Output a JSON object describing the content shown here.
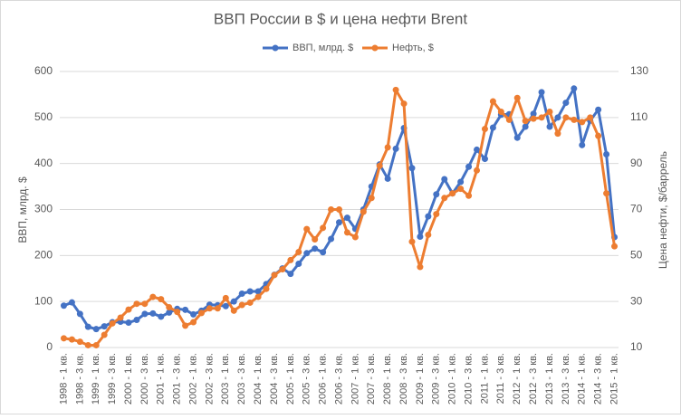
{
  "chart_data": {
    "type": "line",
    "title": "ВВП России в $ и цена нефти Brent",
    "y_label": "ВВП, млрд. $",
    "y2_label": "Цена нефти, $/баррель",
    "categories": [
      "1998 - 1 кв.",
      null,
      "1998 - 3 кв.",
      null,
      "1999 - 1 кв.",
      null,
      "1999 - 3 кв.",
      null,
      "2000 - 1 кв.",
      null,
      "2000 - 3 кв.",
      null,
      "2001 - 1 кв.",
      null,
      "2001 - 3 кв.",
      null,
      "2002 - 1 кв.",
      null,
      "2002 - 3 кв.",
      null,
      "2003 - 1 кв.",
      null,
      "2003 - 3 кв.",
      null,
      "2004 - 1 кв.",
      null,
      "2004 - 3 кв.",
      null,
      "2005 - 1 кв.",
      null,
      "2005 - 3 кв.",
      null,
      "2006 - 1 кв.",
      null,
      "2006 - 3 кв.",
      null,
      "2007 - 1 кв.",
      null,
      "2007 - 3 кв.",
      null,
      "2008 - 1 кв.",
      null,
      "2008 - 3 кв.",
      null,
      "2009 - 1 кв.",
      null,
      "2009 - 3 кв.",
      null,
      "2010 - 1 кв.",
      null,
      "2010 - 3 кв.",
      null,
      "2011 - 1 кв.",
      null,
      "2011 - 3 кв.",
      null,
      "2012 - 1 кв.",
      null,
      "2012 - 3 кв.",
      null,
      "2013 - 1 кв.",
      null,
      "2013 - 3 кв.",
      null,
      "2014 - 1 кв.",
      null,
      "2014 - 3 кв.",
      null,
      "2015 - 1 кв."
    ],
    "series": [
      {
        "name": "ВВП, млрд. $",
        "color": "#4472c4",
        "values": [
          91,
          98,
          73,
          45,
          40,
          46,
          55,
          56,
          54,
          60,
          73,
          74,
          67,
          76,
          84,
          82,
          72,
          80,
          93,
          92,
          90,
          100,
          117,
          122,
          122,
          138,
          158,
          172,
          160,
          182,
          205,
          215,
          207,
          236,
          272,
          282,
          258,
          300,
          350,
          398,
          367,
          432,
          477,
          390,
          241,
          285,
          333,
          366,
          335,
          360,
          393,
          430,
          410,
          478,
          506,
          507,
          456,
          480,
          508,
          555,
          480,
          500,
          532,
          563,
          440,
          493,
          517,
          420,
          240
        ]
      },
      {
        "name": "Нефть, $",
        "color": "#ed7d31",
        "axis": "y2",
        "values": [
          14,
          13.5,
          12.5,
          11,
          11,
          15.5,
          20.5,
          23,
          26.5,
          29,
          29,
          32,
          31,
          27.5,
          25.5,
          19.5,
          21,
          25,
          27,
          27,
          31.5,
          26,
          28.5,
          29.5,
          32,
          35.5,
          41.5,
          44,
          48,
          51.5,
          61.5,
          57,
          62,
          70,
          70,
          60,
          58,
          69,
          75,
          89,
          97,
          122,
          116,
          56,
          45,
          59,
          68,
          75,
          77,
          79,
          76,
          87,
          105,
          117,
          112.5,
          109,
          118.5,
          108.5,
          109.5,
          110,
          112.5,
          103,
          110,
          109,
          108,
          110,
          102,
          77,
          54
        ]
      }
    ],
    "ylim": [
      0,
      600
    ],
    "yticks": [
      0,
      100,
      200,
      300,
      400,
      500,
      600
    ],
    "y2lim": [
      10,
      130
    ],
    "y2ticks": [
      10,
      30,
      50,
      70,
      90,
      110,
      130
    ],
    "grid": true,
    "legend": "top"
  }
}
